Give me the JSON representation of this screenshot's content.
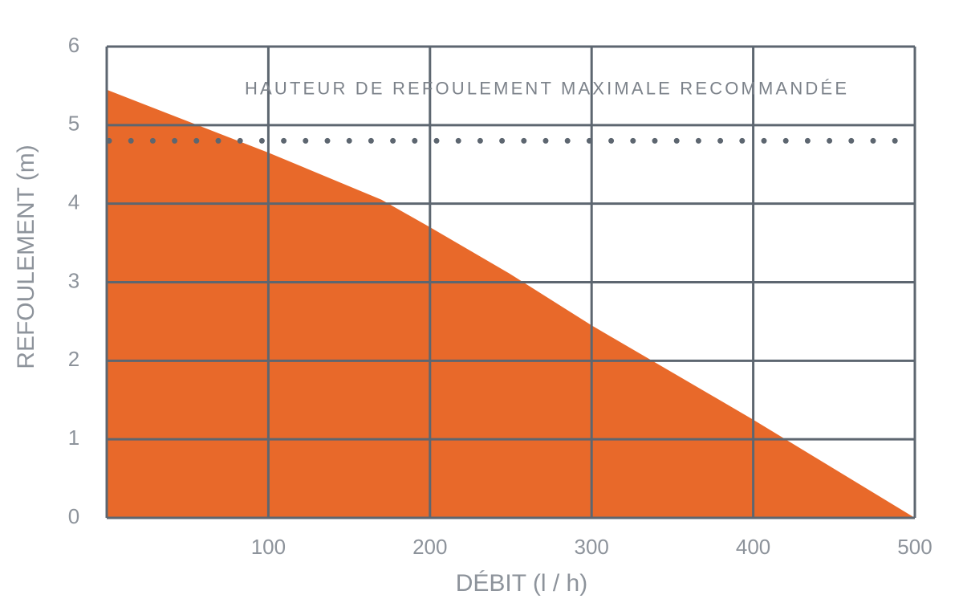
{
  "chart_data": {
    "type": "area",
    "x": [
      0,
      100,
      170,
      200,
      250,
      300,
      400,
      500
    ],
    "values": [
      5.45,
      4.65,
      4.05,
      3.7,
      3.1,
      2.45,
      1.25,
      0
    ],
    "color": "#e8692a",
    "xlim": [
      0,
      500
    ],
    "xticks": [
      100,
      200,
      300,
      400,
      500
    ],
    "ylim": [
      0,
      6
    ],
    "yticks": [
      0,
      1,
      2,
      3,
      4,
      5,
      6
    ],
    "grid": true,
    "xlabel": "DÉBIT (l / h)",
    "ylabel": "REFOULEMENT (m)",
    "reference_line": {
      "value": 4.8,
      "label": "HAUTEUR DE REFOULEMENT MAXIMALE RECOMMANDÉE"
    }
  }
}
